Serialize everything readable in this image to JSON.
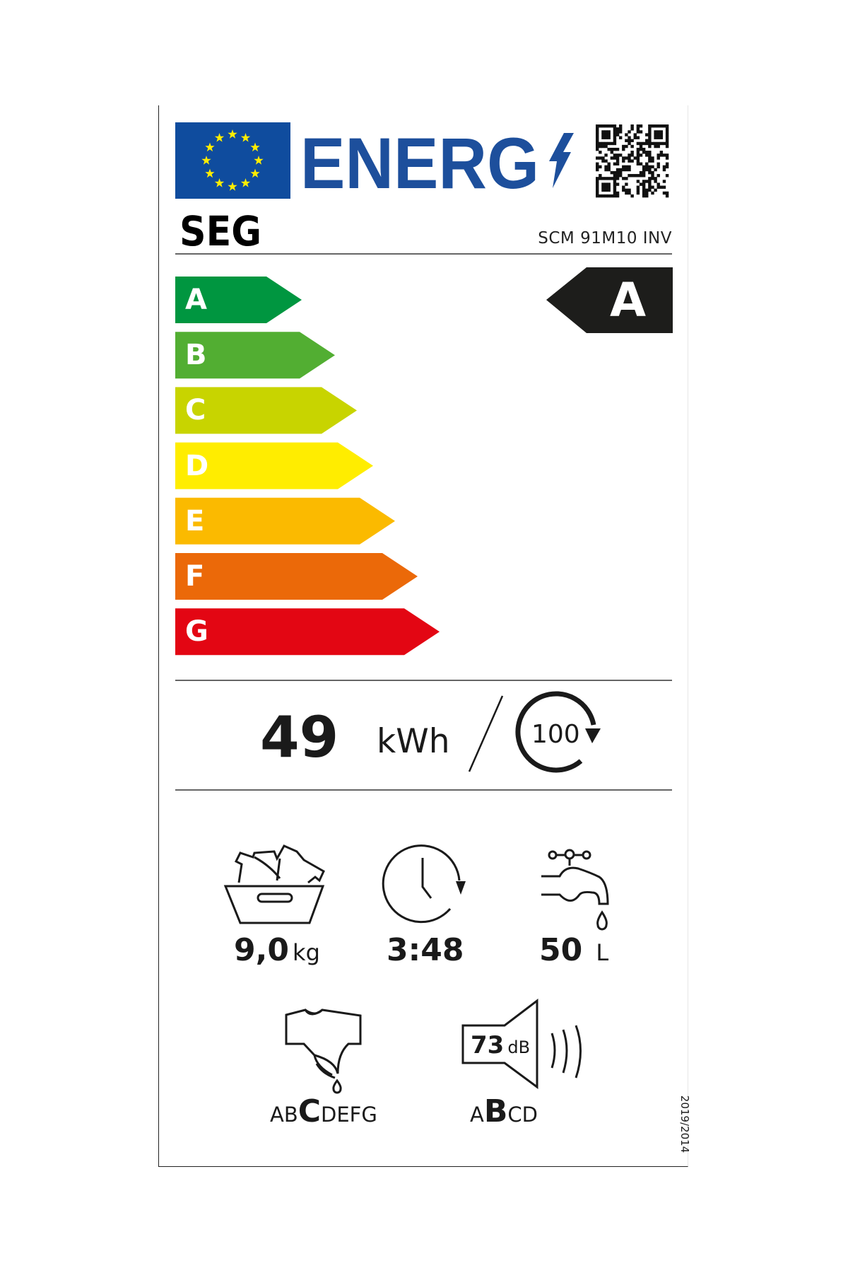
{
  "header": {
    "energy_word": "ENERG",
    "brand": "SEG",
    "model": "SCM 91M10 INV",
    "eu_blue": "#0f4c9e",
    "energ_blue": "#1d4f9c"
  },
  "scale": {
    "classes": [
      {
        "letter": "A",
        "color": "#009640"
      },
      {
        "letter": "B",
        "color": "#52ae32"
      },
      {
        "letter": "C",
        "color": "#c8d400"
      },
      {
        "letter": "D",
        "color": "#ffed00"
      },
      {
        "letter": "E",
        "color": "#fbba00"
      },
      {
        "letter": "F",
        "color": "#eb6909"
      },
      {
        "letter": "G",
        "color": "#e30613"
      }
    ],
    "rated_class": "A",
    "indicator_color": "#1d1d1b"
  },
  "energy": {
    "value": "49",
    "unit": "kWh",
    "cycles": "100",
    "cycles_icon": "rotate-arrow-icon"
  },
  "specs": {
    "capacity": {
      "value": "9,0",
      "unit": "kg",
      "icon": "laundry-basket-icon"
    },
    "duration": {
      "value": "3:48",
      "icon": "clock-icon"
    },
    "water": {
      "value": "50",
      "unit": "L",
      "icon": "water-tap-icon"
    },
    "spin_class": {
      "pre": "AB",
      "active": "C",
      "post": "DEFG",
      "icon": "spin-drying-shirt-icon"
    },
    "noise": {
      "value": "73",
      "unit": "dB",
      "pre": "A",
      "active": "B",
      "post": "CD",
      "icon": "speaker-icon"
    }
  },
  "regulation": "2019/2014"
}
